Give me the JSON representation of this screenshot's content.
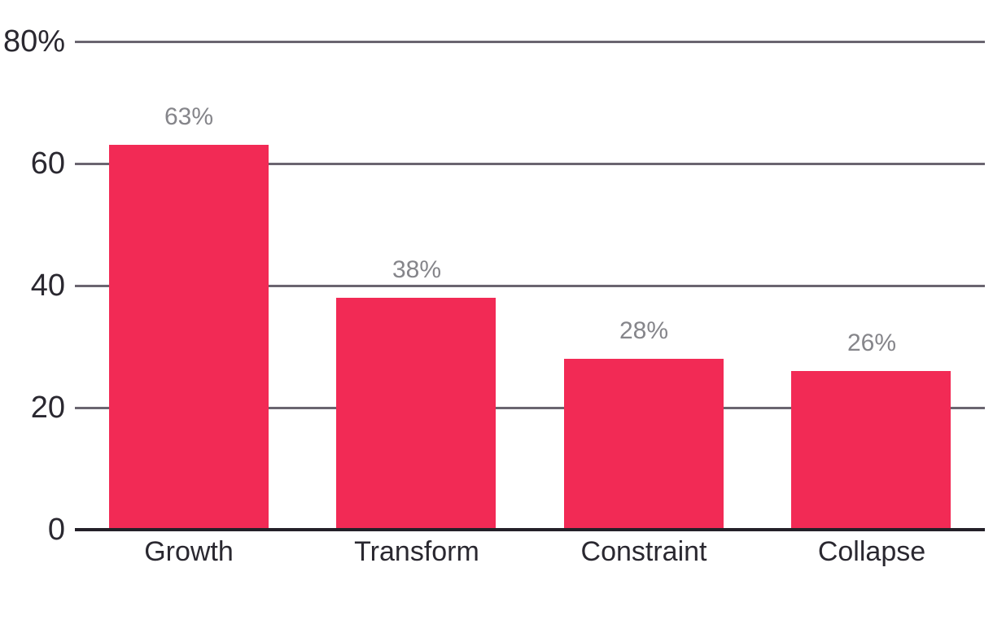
{
  "chart_data": {
    "type": "bar",
    "title": "",
    "categories": [
      "Growth",
      "Transform",
      "Constraint",
      "Collapse"
    ],
    "values": [
      63,
      38,
      28,
      26
    ],
    "value_labels": [
      "63%",
      "38%",
      "28%",
      "26%"
    ],
    "y_ticks": [
      {
        "value": 80,
        "label": "80%"
      },
      {
        "value": 60,
        "label": "60"
      },
      {
        "value": 40,
        "label": "40"
      },
      {
        "value": 20,
        "label": "20"
      },
      {
        "value": 0,
        "label": "0"
      }
    ],
    "ylim": [
      0,
      80
    ],
    "grid": true,
    "legend": false,
    "colors": {
      "bar": "#F22A55",
      "gridline": "#6A6570",
      "axis_line": "#232028",
      "tick_label": "#2A2830",
      "data_label": "#85858A",
      "background": "#FFFFFF"
    }
  }
}
